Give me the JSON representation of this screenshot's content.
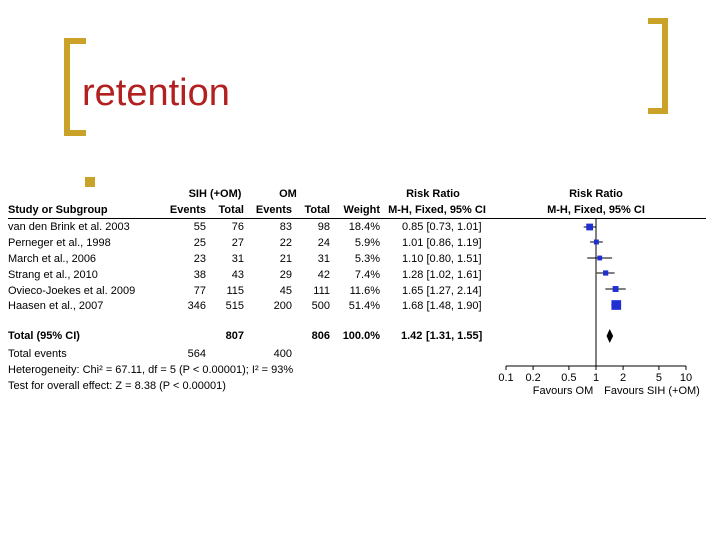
{
  "slide": {
    "title": "retention",
    "accent": "#c9a227",
    "title_color": "#b22020"
  },
  "forest": {
    "headers": {
      "group_sih": "SIH (+OM)",
      "group_om": "OM",
      "risk_ratio": "Risk Ratio",
      "study": "Study or Subgroup",
      "events": "Events",
      "total": "Total",
      "weight": "Weight",
      "method": "M-H, Fixed, 95% CI",
      "plot_title": "Risk Ratio",
      "plot_method": "M-H, Fixed, 95% CI"
    },
    "studies": [
      {
        "name": "van den Brink et al. 2003",
        "e1": "55",
        "t1": "76",
        "e2": "83",
        "t2": "98",
        "weight": "18.4%",
        "ci": "0.85 [0.73, 1.01]"
      },
      {
        "name": "Perneger et al., 1998",
        "e1": "25",
        "t1": "27",
        "e2": "22",
        "t2": "24",
        "weight": "5.9%",
        "ci": "1.01 [0.86, 1.19]"
      },
      {
        "name": "March et al., 2006",
        "e1": "23",
        "t1": "31",
        "e2": "21",
        "t2": "31",
        "weight": "5.3%",
        "ci": "1.10 [0.80, 1.51]"
      },
      {
        "name": "Strang et al., 2010",
        "e1": "38",
        "t1": "43",
        "e2": "29",
        "t2": "42",
        "weight": "7.4%",
        "ci": "1.28 [1.02, 1.61]"
      },
      {
        "name": "Ovieco-Joekes et al. 2009",
        "e1": "77",
        "t1": "115",
        "e2": "45",
        "t2": "111",
        "weight": "11.6%",
        "ci": "1.65 [1.27, 2.14]"
      },
      {
        "name": "Haasen et al., 2007",
        "e1": "346",
        "t1": "515",
        "e2": "200",
        "t2": "500",
        "weight": "51.4%",
        "ci": "1.68 [1.48, 1.90]"
      }
    ],
    "total": {
      "label": "Total (95% CI)",
      "t1": "807",
      "t2": "806",
      "weight": "100.0%",
      "ci_est": "1.42",
      "ci_range": "[1.31, 1.55]"
    },
    "events_row": {
      "label": "Total events",
      "e1": "564",
      "e2": "400"
    },
    "heterogeneity": "Heterogeneity: Chi² = 67.11, df = 5 (P < 0.00001); I² = 93%",
    "overall": "Test for overall effect: Z = 8.38 (P < 0.00001)",
    "favours_left": "Favours OM",
    "favours_right": "Favours SIH (+OM)",
    "marker_color": "#1f2fd0"
  },
  "chart_data": {
    "type": "scatter",
    "subtype": "forest-plot",
    "x_scale": "log",
    "xlim": [
      0.1,
      10
    ],
    "x_ticks": [
      0.1,
      0.2,
      0.5,
      1,
      2,
      5,
      10
    ],
    "x_tick_labels": [
      "0.1",
      "0.2",
      "0.5",
      "1",
      "2",
      "5",
      "10"
    ],
    "title": "Risk Ratio",
    "subtitle": "M-H, Fixed, 95% CI",
    "series": [
      {
        "values": [
          {
            "label": "van den Brink et al. 2003",
            "est": 0.85,
            "lo": 0.73,
            "hi": 1.01,
            "weight": 18.4
          },
          {
            "label": "Perneger et al., 1998",
            "est": 1.01,
            "lo": 0.86,
            "hi": 1.19,
            "weight": 5.9
          },
          {
            "label": "March et al., 2006",
            "est": 1.1,
            "lo": 0.8,
            "hi": 1.51,
            "weight": 5.3
          },
          {
            "label": "Strang et al., 2010",
            "est": 1.28,
            "lo": 1.02,
            "hi": 1.61,
            "weight": 7.4
          },
          {
            "label": "Ovieco-Joekes et al. 2009",
            "est": 1.65,
            "lo": 1.27,
            "hi": 2.14,
            "weight": 11.6
          },
          {
            "label": "Haasen et al., 2007",
            "est": 1.68,
            "lo": 1.48,
            "hi": 1.9,
            "weight": 51.4
          }
        ]
      }
    ],
    "pooled": {
      "label": "Total (95% CI)",
      "est": 1.42,
      "lo": 1.31,
      "hi": 1.55
    }
  }
}
